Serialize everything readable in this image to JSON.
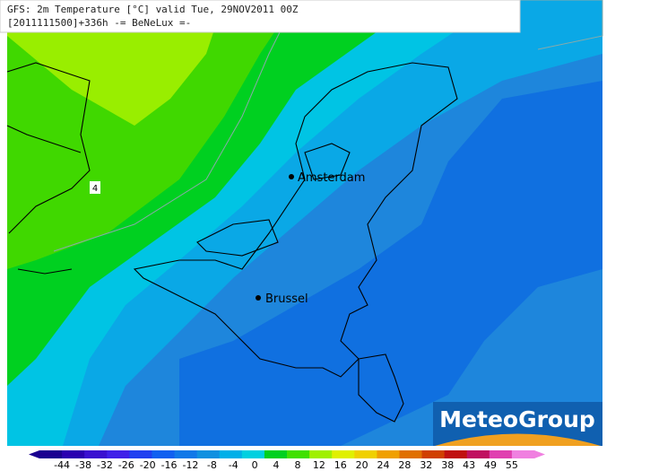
{
  "header": {
    "line1": "GFS: 2m Temperature [°C] valid Tue, 29NOV2011 00Z",
    "line2": "[2011111500]+336h  -= BeNeLux =-"
  },
  "cities": [
    {
      "label": "Amsterdam"
    },
    {
      "label": "Brussel"
    }
  ],
  "contour_label": "4",
  "logo": "MeteoGroup",
  "colorbar": {
    "labels": [
      "-44",
      "-38",
      "-32",
      "-26",
      "-20",
      "-16",
      "-12",
      "-8",
      "-4",
      "0",
      "4",
      "8",
      "12",
      "16",
      "20",
      "24",
      "28",
      "32",
      "38",
      "43",
      "49",
      "55"
    ],
    "colors": [
      "#1a0090",
      "#2a00b0",
      "#3a10d0",
      "#4020e8",
      "#2040f0",
      "#1060f0",
      "#1078e8",
      "#1090e0",
      "#00b0e8",
      "#00d0e0",
      "#00d020",
      "#40e000",
      "#a0f000",
      "#e0f000",
      "#f0d000",
      "#f0a000",
      "#e07000",
      "#d04000",
      "#c01010",
      "#c01060",
      "#e040b0",
      "#f080e0"
    ]
  }
}
